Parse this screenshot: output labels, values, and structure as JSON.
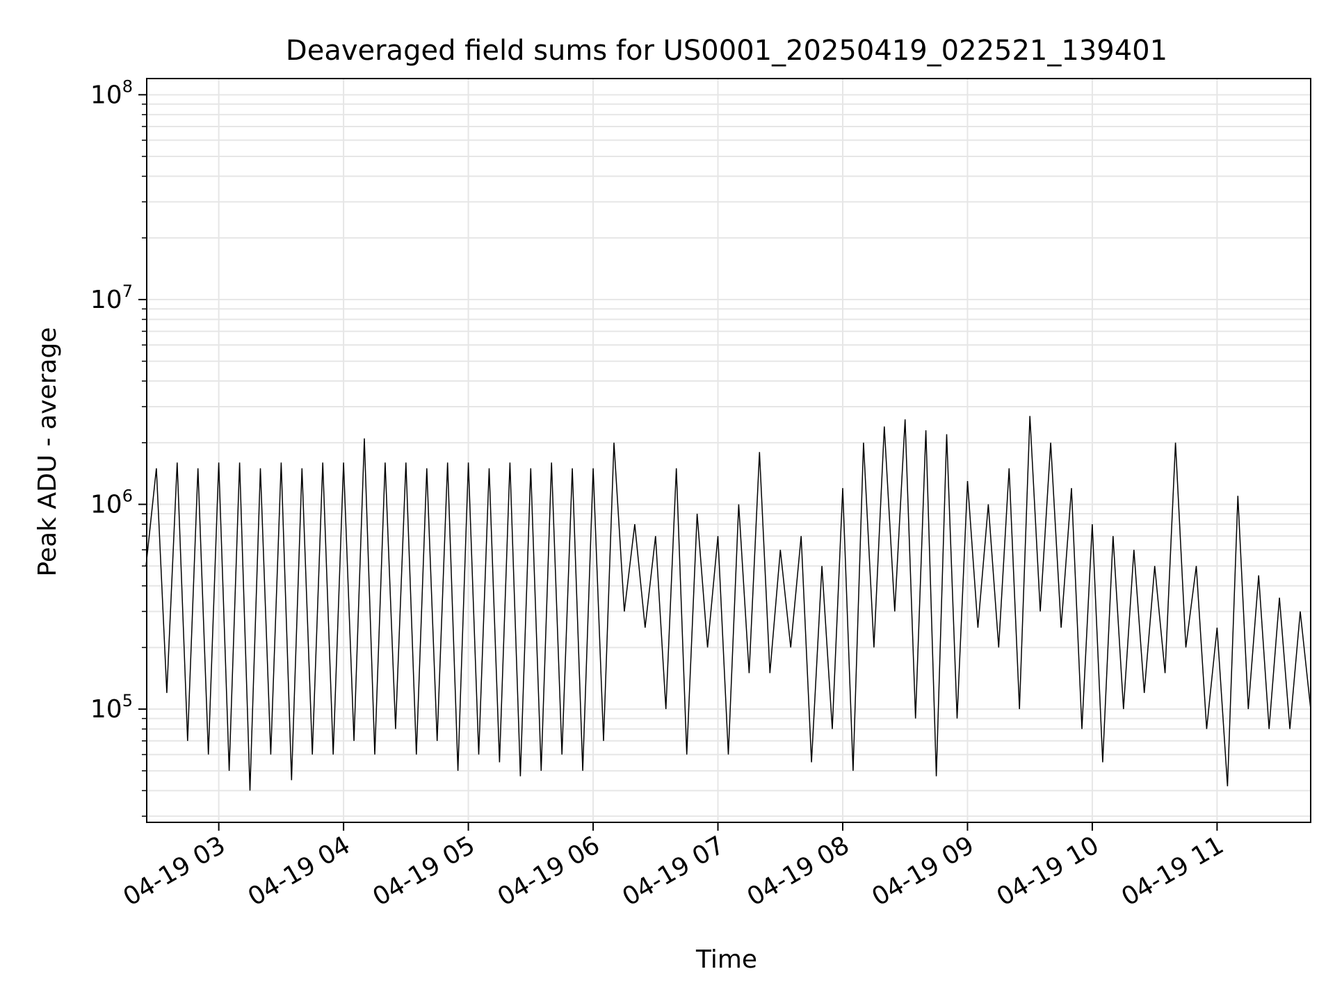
{
  "chart_data": {
    "type": "line",
    "title": "Deaveraged field sums for US0001_20250419_022521_139401",
    "xlabel": "Time",
    "ylabel": "Peak ADU - average",
    "x_axis": {
      "kind": "datetime",
      "range": [
        "2025-04-19T02:25:21",
        "2025-04-19T11:45:00"
      ],
      "ticks": [
        {
          "label": "04-19 03",
          "value": "2025-04-19T03:00"
        },
        {
          "label": "04-19 04",
          "value": "2025-04-19T04:00"
        },
        {
          "label": "04-19 05",
          "value": "2025-04-19T05:00"
        },
        {
          "label": "04-19 06",
          "value": "2025-04-19T06:00"
        },
        {
          "label": "04-19 07",
          "value": "2025-04-19T07:00"
        },
        {
          "label": "04-19 08",
          "value": "2025-04-19T08:00"
        },
        {
          "label": "04-19 09",
          "value": "2025-04-19T09:00"
        },
        {
          "label": "04-19 10",
          "value": "2025-04-19T10:00"
        },
        {
          "label": "04-19 11",
          "value": "2025-04-19T11:00"
        }
      ],
      "tick_label_rotation": 30
    },
    "y_axis": {
      "scale": "log",
      "range": [
        28000,
        120000000
      ],
      "ticks": [
        {
          "base": "10",
          "exp": "5",
          "value": 100000
        },
        {
          "base": "10",
          "exp": "6",
          "value": 1000000
        },
        {
          "base": "10",
          "exp": "7",
          "value": 10000000
        },
        {
          "base": "10",
          "exp": "8",
          "value": 100000000
        }
      ]
    },
    "grid": true,
    "line_color": "#000000",
    "series": [
      {
        "points": [
          [
            "2025-04-19T02:25",
            500000
          ],
          [
            "2025-04-19T02:30",
            1500000
          ],
          [
            "2025-04-19T02:35",
            120000
          ],
          [
            "2025-04-19T02:40",
            1600000
          ],
          [
            "2025-04-19T02:45",
            70000
          ],
          [
            "2025-04-19T02:50",
            1500000
          ],
          [
            "2025-04-19T02:55",
            60000
          ],
          [
            "2025-04-19T03:00",
            1600000
          ],
          [
            "2025-04-19T03:05",
            50000
          ],
          [
            "2025-04-19T03:10",
            1600000
          ],
          [
            "2025-04-19T03:15",
            40000
          ],
          [
            "2025-04-19T03:20",
            1500000
          ],
          [
            "2025-04-19T03:25",
            60000
          ],
          [
            "2025-04-19T03:30",
            1600000
          ],
          [
            "2025-04-19T03:35",
            45000
          ],
          [
            "2025-04-19T03:40",
            1500000
          ],
          [
            "2025-04-19T03:45",
            60000
          ],
          [
            "2025-04-19T03:50",
            1600000
          ],
          [
            "2025-04-19T03:55",
            60000
          ],
          [
            "2025-04-19T04:00",
            1600000
          ],
          [
            "2025-04-19T04:05",
            70000
          ],
          [
            "2025-04-19T04:10",
            2100000
          ],
          [
            "2025-04-19T04:15",
            60000
          ],
          [
            "2025-04-19T04:20",
            1600000
          ],
          [
            "2025-04-19T04:25",
            80000
          ],
          [
            "2025-04-19T04:30",
            1600000
          ],
          [
            "2025-04-19T04:35",
            60000
          ],
          [
            "2025-04-19T04:40",
            1500000
          ],
          [
            "2025-04-19T04:45",
            70000
          ],
          [
            "2025-04-19T04:50",
            1600000
          ],
          [
            "2025-04-19T04:55",
            50000
          ],
          [
            "2025-04-19T05:00",
            1600000
          ],
          [
            "2025-04-19T05:05",
            60000
          ],
          [
            "2025-04-19T05:10",
            1500000
          ],
          [
            "2025-04-19T05:15",
            55000
          ],
          [
            "2025-04-19T05:20",
            1600000
          ],
          [
            "2025-04-19T05:25",
            47000
          ],
          [
            "2025-04-19T05:30",
            1500000
          ],
          [
            "2025-04-19T05:35",
            50000
          ],
          [
            "2025-04-19T05:40",
            1600000
          ],
          [
            "2025-04-19T05:45",
            60000
          ],
          [
            "2025-04-19T05:50",
            1500000
          ],
          [
            "2025-04-19T05:55",
            50000
          ],
          [
            "2025-04-19T06:00",
            1500000
          ],
          [
            "2025-04-19T06:05",
            70000
          ],
          [
            "2025-04-19T06:10",
            2000000
          ],
          [
            "2025-04-19T06:15",
            300000
          ],
          [
            "2025-04-19T06:20",
            800000
          ],
          [
            "2025-04-19T06:25",
            250000
          ],
          [
            "2025-04-19T06:30",
            700000
          ],
          [
            "2025-04-19T06:35",
            100000
          ],
          [
            "2025-04-19T06:40",
            1500000
          ],
          [
            "2025-04-19T06:45",
            60000
          ],
          [
            "2025-04-19T06:50",
            900000
          ],
          [
            "2025-04-19T06:55",
            200000
          ],
          [
            "2025-04-19T07:00",
            700000
          ],
          [
            "2025-04-19T07:05",
            60000
          ],
          [
            "2025-04-19T07:10",
            1000000
          ],
          [
            "2025-04-19T07:15",
            150000
          ],
          [
            "2025-04-19T07:20",
            1800000
          ],
          [
            "2025-04-19T07:25",
            150000
          ],
          [
            "2025-04-19T07:30",
            600000
          ],
          [
            "2025-04-19T07:35",
            200000
          ],
          [
            "2025-04-19T07:40",
            700000
          ],
          [
            "2025-04-19T07:45",
            55000
          ],
          [
            "2025-04-19T07:50",
            500000
          ],
          [
            "2025-04-19T07:55",
            80000
          ],
          [
            "2025-04-19T08:00",
            1200000
          ],
          [
            "2025-04-19T08:05",
            50000
          ],
          [
            "2025-04-19T08:10",
            2000000
          ],
          [
            "2025-04-19T08:15",
            200000
          ],
          [
            "2025-04-19T08:20",
            2400000
          ],
          [
            "2025-04-19T08:25",
            300000
          ],
          [
            "2025-04-19T08:30",
            2600000
          ],
          [
            "2025-04-19T08:35",
            90000
          ],
          [
            "2025-04-19T08:40",
            2300000
          ],
          [
            "2025-04-19T08:45",
            47000
          ],
          [
            "2025-04-19T08:50",
            2200000
          ],
          [
            "2025-04-19T08:55",
            90000
          ],
          [
            "2025-04-19T09:00",
            1300000
          ],
          [
            "2025-04-19T09:05",
            250000
          ],
          [
            "2025-04-19T09:10",
            1000000
          ],
          [
            "2025-04-19T09:15",
            200000
          ],
          [
            "2025-04-19T09:20",
            1500000
          ],
          [
            "2025-04-19T09:25",
            100000
          ],
          [
            "2025-04-19T09:30",
            2700000
          ],
          [
            "2025-04-19T09:35",
            300000
          ],
          [
            "2025-04-19T09:40",
            2000000
          ],
          [
            "2025-04-19T09:45",
            250000
          ],
          [
            "2025-04-19T09:50",
            1200000
          ],
          [
            "2025-04-19T09:55",
            80000
          ],
          [
            "2025-04-19T10:00",
            800000
          ],
          [
            "2025-04-19T10:05",
            55000
          ],
          [
            "2025-04-19T10:10",
            700000
          ],
          [
            "2025-04-19T10:15",
            100000
          ],
          [
            "2025-04-19T10:20",
            600000
          ],
          [
            "2025-04-19T10:25",
            120000
          ],
          [
            "2025-04-19T10:30",
            500000
          ],
          [
            "2025-04-19T10:35",
            150000
          ],
          [
            "2025-04-19T10:40",
            2000000
          ],
          [
            "2025-04-19T10:45",
            200000
          ],
          [
            "2025-04-19T10:50",
            500000
          ],
          [
            "2025-04-19T10:55",
            80000
          ],
          [
            "2025-04-19T11:00",
            250000
          ],
          [
            "2025-04-19T11:05",
            42000
          ],
          [
            "2025-04-19T11:10",
            1100000
          ],
          [
            "2025-04-19T11:15",
            100000
          ],
          [
            "2025-04-19T11:20",
            450000
          ],
          [
            "2025-04-19T11:25",
            80000
          ],
          [
            "2025-04-19T11:30",
            350000
          ],
          [
            "2025-04-19T11:35",
            80000
          ],
          [
            "2025-04-19T11:40",
            300000
          ],
          [
            "2025-04-19T11:45",
            100000
          ]
        ]
      }
    ]
  }
}
